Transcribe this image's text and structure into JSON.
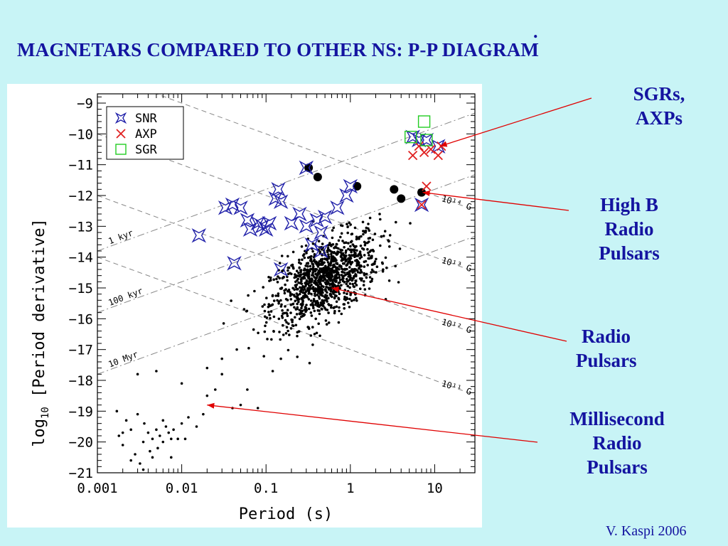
{
  "slide": {
    "title": "MAGNETARS COMPARED TO OTHER NS: P-P DIAGRAM",
    "credit": "V. Kaspi 2006",
    "annotations": [
      {
        "id": "sgr-axp",
        "lines": [
          "SGRs,",
          "AXPs"
        ]
      },
      {
        "id": "high-b",
        "lines": [
          "High B",
          "Radio",
          "Pulsars"
        ]
      },
      {
        "id": "radio",
        "lines": [
          "Radio",
          "Pulsars"
        ]
      },
      {
        "id": "msp",
        "lines": [
          "Millisecond",
          "Radio",
          "Pulsars"
        ]
      }
    ],
    "colors": {
      "background": "#c8f4f6",
      "text": "#1414a0",
      "arrow": "#e00000"
    }
  },
  "chart_data": {
    "type": "scatter",
    "xlabel": "Period (s)",
    "ylabel": "log10 [Period derivative]",
    "x_scale": "log",
    "xlim": [
      0.001,
      30
    ],
    "ylim": [
      -21,
      -8.7
    ],
    "x_ticks": [
      "0.001",
      "0.01",
      "0.1",
      "1",
      "10"
    ],
    "y_ticks": [
      "−9",
      "−10",
      "−11",
      "−12",
      "−13",
      "−14",
      "−15",
      "−16",
      "−17",
      "−18",
      "−19",
      "−20",
      "−21"
    ],
    "legend": {
      "placement": "top-left",
      "entries": [
        "SNR",
        "AXP",
        "SGR"
      ]
    },
    "age_lines": [
      {
        "label": "1 kyr",
        "age_yr": 1000
      },
      {
        "label": "100 kyr",
        "age_yr": 100000
      },
      {
        "label": "10 Myr",
        "age_yr": 10000000
      }
    ],
    "field_lines": [
      {
        "label": "10¹⁴ G",
        "B_gauss": 100000000000000.0
      },
      {
        "label": "10¹³ G",
        "B_gauss": 10000000000000.0
      },
      {
        "label": "10¹² G",
        "B_gauss": 1000000000000.0
      },
      {
        "label": "10¹¹ G",
        "B_gauss": 100000000000.0
      }
    ],
    "series": [
      {
        "name": "SNR",
        "marker": "star",
        "color": "#2222aa",
        "points": [
          [
            0.016,
            -13.3
          ],
          [
            0.033,
            -12.4
          ],
          [
            0.04,
            -12.3
          ],
          [
            0.05,
            -12.4
          ],
          [
            0.06,
            -12.8
          ],
          [
            0.065,
            -13.1
          ],
          [
            0.08,
            -12.9
          ],
          [
            0.09,
            -13.0
          ],
          [
            0.1,
            -13.1
          ],
          [
            0.11,
            -12.9
          ],
          [
            0.13,
            -12.1
          ],
          [
            0.14,
            -11.8
          ],
          [
            0.15,
            -12.2
          ],
          [
            0.2,
            -12.9
          ],
          [
            0.25,
            -12.6
          ],
          [
            0.3,
            -13.0
          ],
          [
            0.4,
            -12.8
          ],
          [
            0.45,
            -13.2
          ],
          [
            0.5,
            -12.7
          ],
          [
            0.35,
            -13.6
          ],
          [
            0.45,
            -13.8
          ],
          [
            0.042,
            -14.2
          ],
          [
            0.15,
            -14.4
          ],
          [
            0.3,
            -11.1
          ],
          [
            0.7,
            -12.4
          ],
          [
            0.9,
            -12.0
          ],
          [
            1.0,
            -11.7
          ],
          [
            5.5,
            -10.1
          ],
          [
            6.5,
            -10.2
          ],
          [
            8.0,
            -10.2
          ],
          [
            11.0,
            -10.4
          ],
          [
            7.0,
            -12.3
          ]
        ]
      },
      {
        "name": "AXP",
        "marker": "x",
        "color": "#e02020",
        "points": [
          [
            5.5,
            -10.7
          ],
          [
            6.5,
            -10.4
          ],
          [
            7.5,
            -10.6
          ],
          [
            9.0,
            -10.5
          ],
          [
            11.0,
            -10.7
          ],
          [
            12.0,
            -10.4
          ],
          [
            8.0,
            -11.7
          ],
          [
            7.0,
            -12.3
          ]
        ]
      },
      {
        "name": "SGR",
        "marker": "square",
        "color": "#22cc22",
        "points": [
          [
            5.2,
            -10.1
          ],
          [
            7.5,
            -9.6
          ],
          [
            8.0,
            -10.2
          ]
        ]
      },
      {
        "name": "High-B radio pulsars",
        "marker": "big-dot",
        "color": "#000000",
        "points": [
          [
            0.32,
            -11.1
          ],
          [
            0.41,
            -11.4
          ],
          [
            1.2,
            -11.7
          ],
          [
            3.3,
            -11.8
          ],
          [
            4.0,
            -12.1
          ],
          [
            7.0,
            -11.9
          ]
        ]
      },
      {
        "name": "Radio pulsars",
        "marker": "dot",
        "color": "#000000",
        "generated": {
          "count": 1100,
          "center_logP": -0.3,
          "center_logPdot": -14.7,
          "spread_logP": 0.32,
          "spread_logPdot": 0.75
        }
      },
      {
        "name": "Millisecond radio pulsars",
        "marker": "dot",
        "color": "#000000",
        "points": [
          [
            0.0017,
            -19.0
          ],
          [
            0.0018,
            -19.8
          ],
          [
            0.002,
            -20.1
          ],
          [
            0.0022,
            -19.3
          ],
          [
            0.0025,
            -19.6
          ],
          [
            0.0028,
            -20.4
          ],
          [
            0.003,
            -19.1
          ],
          [
            0.0032,
            -20.7
          ],
          [
            0.0035,
            -20.0
          ],
          [
            0.0036,
            -19.4
          ],
          [
            0.004,
            -19.7
          ],
          [
            0.0042,
            -20.3
          ],
          [
            0.0045,
            -19.9
          ],
          [
            0.005,
            -19.6
          ],
          [
            0.0052,
            -20.2
          ],
          [
            0.0055,
            -19.8
          ],
          [
            0.006,
            -20.0
          ],
          [
            0.0065,
            -19.5
          ],
          [
            0.007,
            -19.7
          ],
          [
            0.0075,
            -20.5
          ],
          [
            0.008,
            -19.6
          ],
          [
            0.009,
            -19.9
          ],
          [
            0.01,
            -19.4
          ],
          [
            0.012,
            -19.2
          ],
          [
            0.015,
            -19.5
          ],
          [
            0.02,
            -18.5
          ],
          [
            0.025,
            -18.3
          ],
          [
            0.03,
            -17.8
          ],
          [
            0.04,
            -18.9
          ],
          [
            0.05,
            -18.8
          ],
          [
            0.06,
            -18.3
          ],
          [
            0.08,
            -18.9
          ],
          [
            0.003,
            -17.8
          ],
          [
            0.005,
            -17.7
          ],
          [
            0.01,
            -18.1
          ],
          [
            0.12,
            -17.7
          ],
          [
            0.15,
            -17.3
          ],
          [
            0.03,
            -17.3
          ],
          [
            0.045,
            -17.0
          ],
          [
            0.02,
            -17.6
          ],
          [
            0.0035,
            -20.9
          ],
          [
            0.0045,
            -20.5
          ],
          [
            0.006,
            -19.3
          ],
          [
            0.002,
            -19.7
          ],
          [
            0.0025,
            -20.6
          ],
          [
            0.0075,
            -19.9
          ],
          [
            0.011,
            -19.9
          ],
          [
            0.018,
            -19.1
          ]
        ]
      }
    ]
  }
}
